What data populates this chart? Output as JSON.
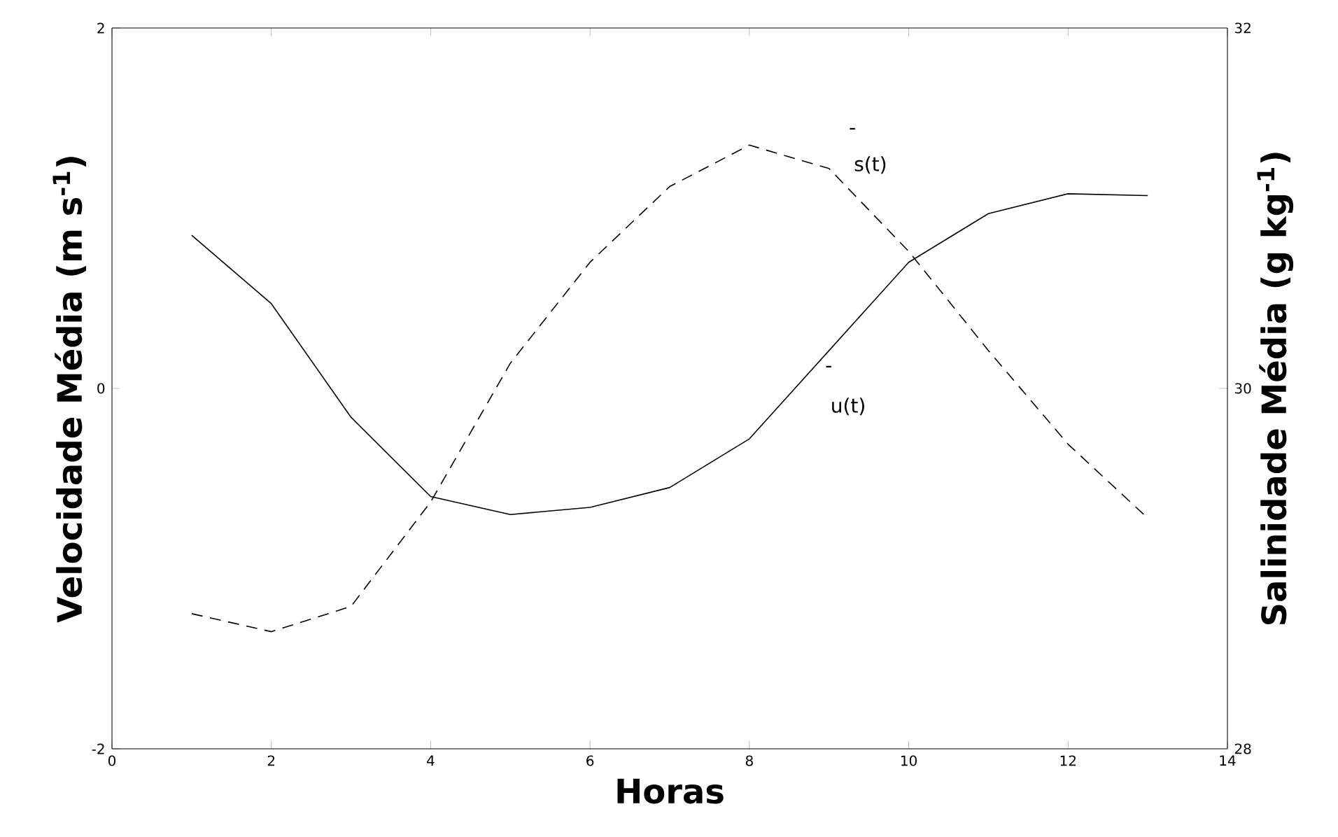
{
  "chart_data": {
    "type": "line",
    "xlabel": "Horas",
    "ylabel": "Velocidade Média (m s$^{-1}$)",
    "y2label": "Salinidade Média (g kg$^{-1}$)",
    "x": [
      1,
      2,
      3,
      4,
      5,
      6,
      7,
      8,
      9,
      10,
      11,
      12,
      13
    ],
    "series": [
      {
        "color": "#000000",
        "line_style": "solid",
        "values": [
          0.85,
          0.47,
          -0.16,
          -0.6,
          -0.7,
          -0.66,
          -0.55,
          -0.28,
          0.21,
          0.7,
          0.97,
          1.08,
          1.07
        ]
      },
      {
        "color": "#000000",
        "line_style": "dashed",
        "axis": "y2",
        "values": [
          28.75,
          28.65,
          28.79,
          29.37,
          30.14,
          30.7,
          31.12,
          31.35,
          31.22,
          30.76,
          30.21,
          29.69,
          29.28
        ]
      }
    ],
    "xlim": [
      0,
      14
    ],
    "xticks": [
      0,
      2,
      4,
      6,
      8,
      10,
      12,
      14
    ],
    "ylim": [
      -2,
      2
    ],
    "yticks": [
      -2,
      0,
      2
    ],
    "y2lim": [
      28,
      32
    ],
    "y2ticks": [
      28,
      30,
      32
    ],
    "annotations": [
      "-",
      "s(t)",
      "-",
      "u(t)"
    ],
    "marker": "none"
  }
}
